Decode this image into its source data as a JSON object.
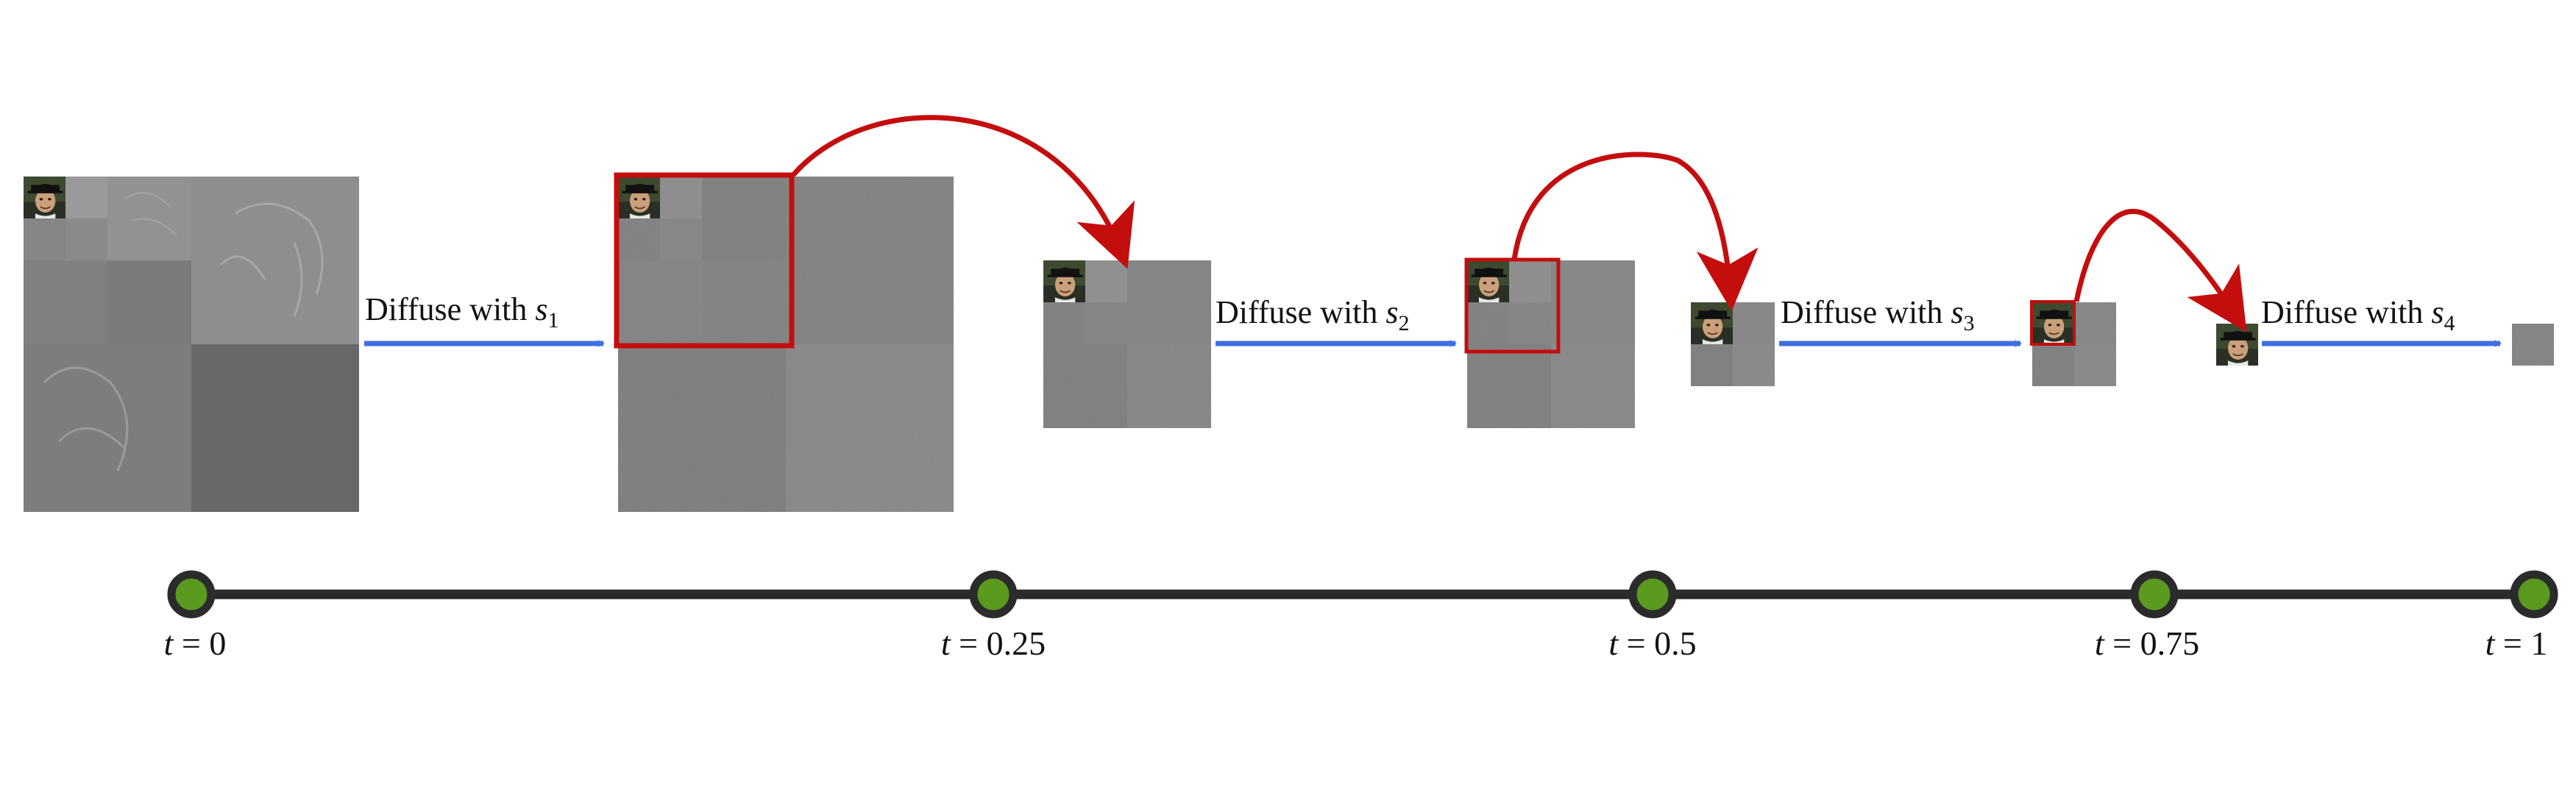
{
  "diffuse_labels": [
    {
      "text": "Diffuse with ",
      "var": "s",
      "sub": "1"
    },
    {
      "text": "Diffuse with ",
      "var": "s",
      "sub": "2"
    },
    {
      "text": "Diffuse with ",
      "var": "s",
      "sub": "3"
    },
    {
      "text": "Diffuse with ",
      "var": "s",
      "sub": "4"
    }
  ],
  "timeline": {
    "ticks": [
      {
        "var": "t",
        "eq": " = ",
        "value": "0"
      },
      {
        "var": "t",
        "eq": " = ",
        "value": "0.25"
      },
      {
        "var": "t",
        "eq": " = ",
        "value": "0.5"
      },
      {
        "var": "t",
        "eq": " = ",
        "value": "0.75"
      },
      {
        "var": "t",
        "eq": " = ",
        "value": "1"
      }
    ]
  },
  "colors": {
    "diffuse_arrow": "#3e6fe0",
    "zoom_arrow": "#c40d0d",
    "timeline_line": "#2b2b2b",
    "timeline_node": "#5a9a1e"
  },
  "icons": {
    "thumbnail": "portrait-photo-icon"
  }
}
